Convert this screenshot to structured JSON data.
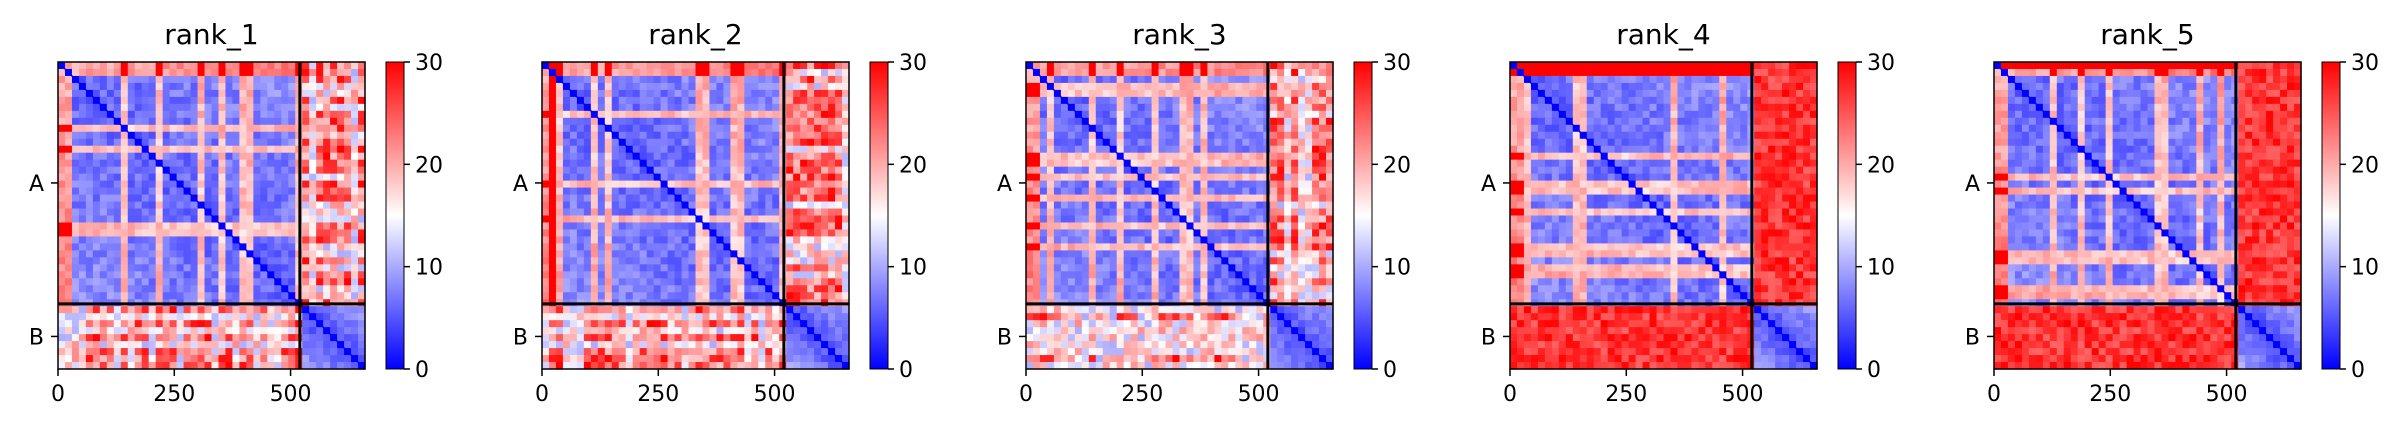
{
  "chart_data": {
    "type": "heatmap",
    "colormap": {
      "low": "#0000ff",
      "mid": "#ffffff",
      "high": "#ff0000"
    },
    "panels": [
      {
        "title": "rank_1",
        "b_region_high": false
      },
      {
        "title": "rank_2",
        "b_region_high": false
      },
      {
        "title": "rank_3",
        "b_region_high": false
      },
      {
        "title": "rank_4",
        "b_region_high": true
      },
      {
        "title": "rank_5",
        "b_region_high": true
      }
    ],
    "chain_lengths": [
      520,
      140
    ],
    "chains": [
      "A",
      "B"
    ],
    "x_ticks": [
      0,
      250,
      500
    ],
    "xlim": [
      0,
      660
    ],
    "colorbar": {
      "min": 0,
      "max": 30,
      "ticks": [
        0,
        10,
        20,
        30
      ]
    }
  }
}
